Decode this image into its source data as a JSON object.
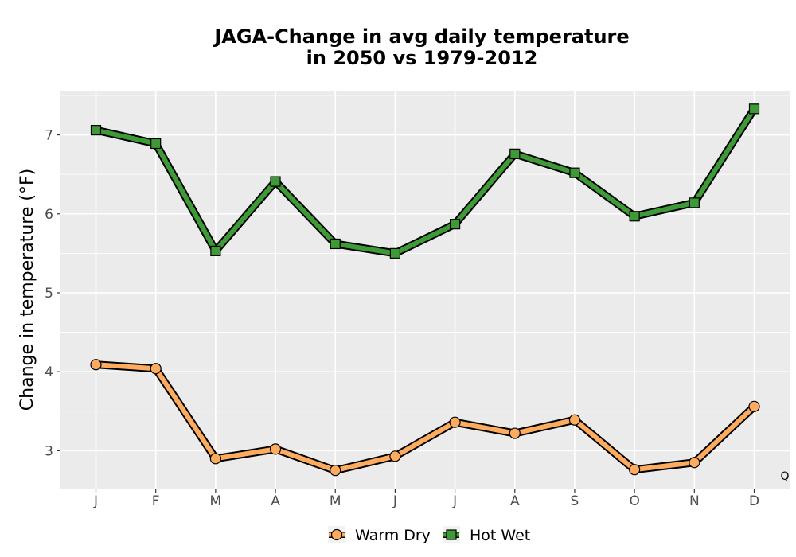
{
  "chart_data": {
    "type": "line",
    "title_lines": [
      "JAGA-Change in avg daily temperature",
      "in 2050 vs 1979-2012"
    ],
    "xlabel": "",
    "ylabel": "Change in temperature (°F)",
    "categories": [
      "J",
      "F",
      "M",
      "A",
      "M",
      "J",
      "J",
      "A",
      "S",
      "O",
      "N",
      "D"
    ],
    "ylim": [
      2.52,
      7.56
    ],
    "yticks": [
      3,
      4,
      5,
      6,
      7
    ],
    "grid": true,
    "legend_position": "bottom",
    "annotation": "Q",
    "series": [
      {
        "name": "Warm Dry",
        "marker": "circle",
        "color": "#FDAB5E",
        "values": [
          4.09,
          4.04,
          2.9,
          3.02,
          2.75,
          2.93,
          3.36,
          3.22,
          3.39,
          2.76,
          2.85,
          3.56
        ]
      },
      {
        "name": "Hot Wet",
        "marker": "square",
        "color": "#3E9A36",
        "values": [
          7.06,
          6.89,
          5.53,
          6.41,
          5.62,
          5.5,
          5.87,
          6.76,
          6.52,
          5.97,
          6.14,
          7.33
        ]
      }
    ]
  }
}
